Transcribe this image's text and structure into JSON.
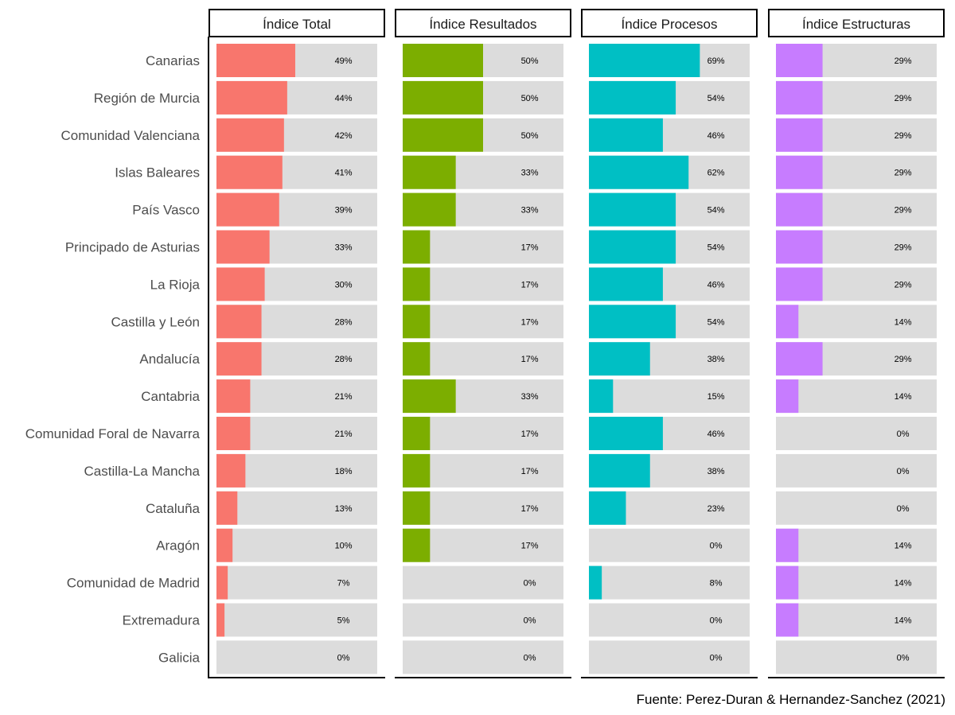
{
  "chart_data": {
    "type": "bar",
    "orientation": "horizontal",
    "facets": [
      "Índice Total",
      "Índice Resultados",
      "Índice Procesos",
      "Índice Estructuras"
    ],
    "categories": [
      "Canarias",
      "Región de Murcia",
      "Comunidad Valenciana",
      "Islas Baleares",
      "País Vasco",
      "Principado de Asturias",
      "La Rioja",
      "Castilla y León",
      "Andalucía",
      "Cantabria",
      "Comunidad Foral de Navarra",
      "Castilla-La Mancha",
      "Cataluña",
      "Aragón",
      "Comunidad de Madrid",
      "Extremadura",
      "Galicia"
    ],
    "series": [
      {
        "name": "Índice Total",
        "color": "#F8766D",
        "values": [
          49,
          44,
          42,
          41,
          39,
          33,
          30,
          28,
          28,
          21,
          21,
          18,
          13,
          10,
          7,
          5,
          0
        ]
      },
      {
        "name": "Índice Resultados",
        "color": "#7CAE00",
        "values": [
          50,
          50,
          50,
          33,
          33,
          17,
          17,
          17,
          17,
          33,
          17,
          17,
          17,
          17,
          0,
          0,
          0
        ]
      },
      {
        "name": "Índice Procesos",
        "color": "#00BFC4",
        "values": [
          69,
          54,
          46,
          62,
          54,
          54,
          46,
          54,
          38,
          15,
          46,
          38,
          23,
          0,
          8,
          0,
          0
        ]
      },
      {
        "name": "Índice Estructuras",
        "color": "#C77CFF",
        "values": [
          29,
          29,
          29,
          29,
          29,
          29,
          29,
          14,
          29,
          14,
          0,
          0,
          0,
          14,
          14,
          14,
          0
        ]
      }
    ],
    "value_suffix": "%",
    "xlim": [
      0,
      100
    ],
    "background_bar_color": "#DCDCDC",
    "caption": "Fuente: Perez-Duran & Hernandez-Sanchez (2021)"
  }
}
